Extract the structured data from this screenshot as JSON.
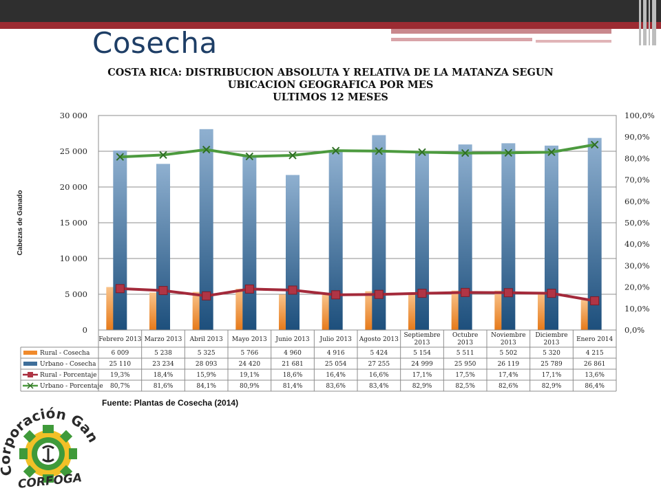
{
  "slide": {
    "title": "Cosecha",
    "source": "Fuente: Plantas de Cosecha (2014)",
    "logo_text": "Corporación Ganadera",
    "logo_short": "CORFOGA"
  },
  "colors": {
    "rural_bar": "#f08a2b",
    "urbano_bar": "#3f6f9a",
    "rural_line": "#a3293a",
    "urbano_line": "#4c9a3e",
    "grid": "#8c8c8c"
  },
  "chart_data": {
    "type": "bar",
    "title_lines": [
      "COSTA RICA: DISTRIBUCION ABSOLUTA Y RELATIVA DE LA MATANZA SEGUN",
      "UBICACION GEOGRAFICA POR MES",
      "ULTIMOS 12 MESES"
    ],
    "ylabel": "Cabezas de Ganado",
    "ylim": [
      0,
      30000
    ],
    "y_ticks": [
      "0",
      "5 000",
      "10 000",
      "15 000",
      "20 000",
      "25 000",
      "30 000"
    ],
    "y2lim": [
      0,
      100
    ],
    "y2_ticks": [
      "0,0%",
      "10,0%",
      "20,0%",
      "30,0%",
      "40,0%",
      "50,0%",
      "60,0%",
      "70,0%",
      "80,0%",
      "90,0%",
      "100,0%"
    ],
    "grid": true,
    "legend": "table-below",
    "categories": [
      [
        "Febrero 2013"
      ],
      [
        "Marzo 2013"
      ],
      [
        "Abril 2013"
      ],
      [
        "Mayo 2013"
      ],
      [
        "Junio 2013"
      ],
      [
        "Julio 2013"
      ],
      [
        "Agosto 2013"
      ],
      [
        "Septiembre",
        "2013"
      ],
      [
        "Octubre",
        "2013"
      ],
      [
        "Noviembre",
        "2013"
      ],
      [
        "Diciembre",
        "2013"
      ],
      [
        "Enero 2014"
      ]
    ],
    "series": [
      {
        "name": "Rural - Cosecha",
        "kind": "bar",
        "axis": "left",
        "values": [
          6009,
          5238,
          5325,
          5766,
          4960,
          4916,
          5424,
          5154,
          5511,
          5502,
          5320,
          4215
        ],
        "labels": [
          "6 009",
          "5 238",
          "5 325",
          "5 766",
          "4 960",
          "4 916",
          "5 424",
          "5 154",
          "5 511",
          "5 502",
          "5 320",
          "4 215"
        ]
      },
      {
        "name": "Urbano - Cosecha",
        "kind": "bar",
        "axis": "left",
        "values": [
          25110,
          23234,
          28093,
          24420,
          21681,
          25054,
          27255,
          24999,
          25950,
          26119,
          25789,
          26861
        ],
        "labels": [
          "25 110",
          "23 234",
          "28 093",
          "24 420",
          "21 681",
          "25 054",
          "27 255",
          "24 999",
          "25 950",
          "26 119",
          "25 789",
          "26 861"
        ]
      },
      {
        "name": "Rural - Porcentaje",
        "kind": "line",
        "axis": "right",
        "values": [
          19.3,
          18.4,
          15.9,
          19.1,
          18.6,
          16.4,
          16.6,
          17.1,
          17.5,
          17.4,
          17.1,
          13.6
        ],
        "labels": [
          "19,3%",
          "18,4%",
          "15,9%",
          "19,1%",
          "18,6%",
          "16,4%",
          "16,6%",
          "17,1%",
          "17,5%",
          "17,4%",
          "17,1%",
          "13,6%"
        ]
      },
      {
        "name": "Urbano - Porcentaje",
        "kind": "line",
        "axis": "right",
        "values": [
          80.7,
          81.6,
          84.1,
          80.9,
          81.4,
          83.6,
          83.4,
          82.9,
          82.5,
          82.6,
          82.9,
          86.4
        ],
        "labels": [
          "80,7%",
          "81,6%",
          "84,1%",
          "80,9%",
          "81,4%",
          "83,6%",
          "83,4%",
          "82,9%",
          "82,5%",
          "82,6%",
          "82,9%",
          "86,4%"
        ]
      }
    ]
  }
}
